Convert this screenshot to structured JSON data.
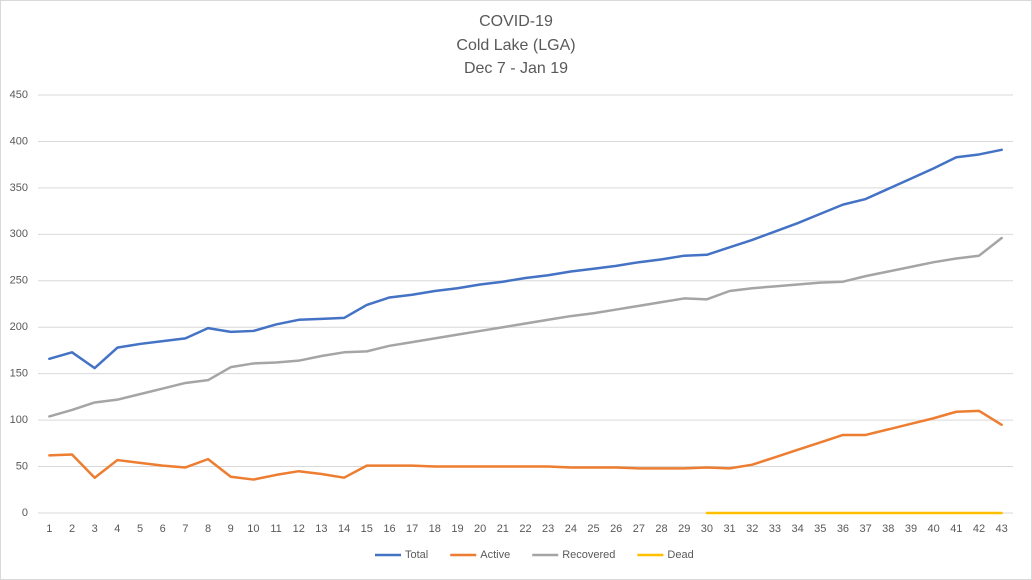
{
  "chart_data": {
    "type": "line",
    "title": [
      "COVID-19",
      "Cold Lake (LGA)",
      "Dec 7 - Jan 19"
    ],
    "categories": [
      "1",
      "2",
      "3",
      "4",
      "5",
      "6",
      "7",
      "8",
      "9",
      "10",
      "11",
      "12",
      "13",
      "14",
      "15",
      "16",
      "17",
      "18",
      "19",
      "20",
      "21",
      "22",
      "23",
      "24",
      "25",
      "26",
      "27",
      "28",
      "29",
      "30",
      "31",
      "32",
      "33",
      "34",
      "35",
      "36",
      "37",
      "38",
      "39",
      "40",
      "41",
      "42",
      "43"
    ],
    "series": [
      {
        "name": "Total",
        "color": "#4472c4",
        "values": [
          166,
          173,
          156,
          178,
          182,
          185,
          188,
          199,
          195,
          196,
          203,
          208,
          209,
          210,
          224,
          232,
          235,
          239,
          242,
          246,
          249,
          253,
          256,
          260,
          263,
          266,
          270,
          273,
          277,
          278,
          286,
          294,
          303,
          312,
          322,
          332,
          338,
          349,
          360,
          371,
          383,
          386,
          391
        ]
      },
      {
        "name": "Active",
        "color": "#ed7d31",
        "values": [
          62,
          63,
          38,
          57,
          54,
          51,
          49,
          58,
          39,
          36,
          41,
          45,
          42,
          38,
          51,
          51,
          51,
          50,
          50,
          50,
          50,
          50,
          50,
          49,
          49,
          49,
          48,
          48,
          48,
          49,
          48,
          52,
          60,
          68,
          76,
          84,
          84,
          90,
          96,
          102,
          109,
          110,
          95
        ]
      },
      {
        "name": "Recovered",
        "color": "#a5a5a5",
        "values": [
          104,
          111,
          119,
          122,
          128,
          134,
          140,
          143,
          157,
          161,
          162,
          164,
          169,
          173,
          174,
          180,
          184,
          188,
          192,
          196,
          200,
          204,
          208,
          212,
          215,
          219,
          223,
          227,
          231,
          230,
          239,
          242,
          244,
          246,
          248,
          249,
          255,
          260,
          265,
          270,
          274,
          277,
          296
        ]
      },
      {
        "name": "Dead",
        "color": "#ffc000",
        "values": [
          null,
          null,
          null,
          null,
          null,
          null,
          null,
          null,
          null,
          null,
          null,
          null,
          null,
          null,
          null,
          null,
          null,
          null,
          null,
          null,
          null,
          null,
          null,
          null,
          null,
          null,
          null,
          null,
          null,
          0,
          0,
          0,
          0,
          0,
          0,
          0,
          0,
          0,
          0,
          0,
          0,
          0,
          0
        ]
      }
    ],
    "ylim": [
      0,
      450
    ],
    "yticks": [
      0,
      50,
      100,
      150,
      200,
      250,
      300,
      350,
      400,
      450
    ],
    "grid": true,
    "legend": "bottom"
  }
}
